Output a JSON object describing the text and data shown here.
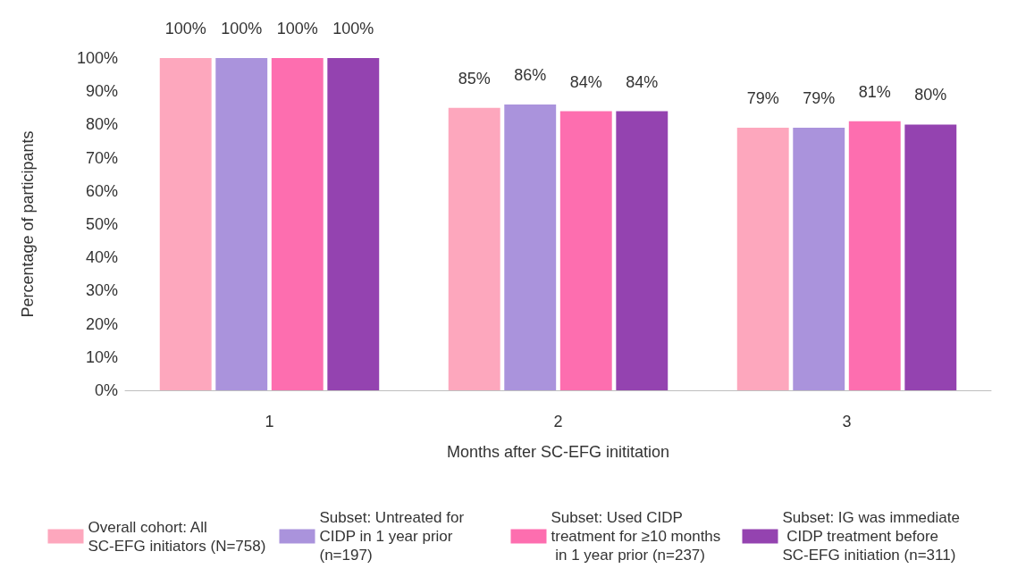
{
  "chart_data": {
    "type": "bar",
    "xlabel": "Months after SC-EFG inititation",
    "ylabel": "Percentage of participants",
    "categories": [
      "1",
      "2",
      "3"
    ],
    "series": [
      {
        "name": "Overall cohort: All SC-EFG initiators (N=758)",
        "color": "#fda7bd",
        "values": [
          100,
          85,
          79
        ],
        "value_labels": [
          "100%",
          "85%",
          "79%"
        ]
      },
      {
        "name": "Subset: Untreated for CIDP in 1 year prior (n=197)",
        "color": "#aa93dc",
        "values": [
          100,
          86,
          79
        ],
        "value_labels": [
          "100%",
          "86%",
          "79%"
        ]
      },
      {
        "name": "Subset: Used CIDP treatment for ≥10 months in 1 year prior (n=237)",
        "color": "#fd6eaf",
        "values": [
          100,
          84,
          81
        ],
        "value_labels": [
          "100%",
          "84%",
          "81%"
        ]
      },
      {
        "name": "Subset: IG was immediate CIDP treatment before SC-EFG initiation (n=311)",
        "color": "#9443b0",
        "values": [
          100,
          84,
          80
        ],
        "value_labels": [
          "100%",
          "84%",
          "80%"
        ]
      }
    ],
    "ylim": [
      0,
      100
    ],
    "yticks": [
      {
        "value": 0,
        "label": "0%"
      },
      {
        "value": 10,
        "label": "10%"
      },
      {
        "value": 20,
        "label": "20%"
      },
      {
        "value": 30,
        "label": "30%"
      },
      {
        "value": 40,
        "label": "40%"
      },
      {
        "value": 50,
        "label": "50%"
      },
      {
        "value": 60,
        "label": "60%"
      },
      {
        "value": 70,
        "label": "70%"
      },
      {
        "value": 80,
        "label": "80%"
      },
      {
        "value": 90,
        "label": "90%"
      },
      {
        "value": 100,
        "label": "100%"
      }
    ],
    "grid": false,
    "legend": "bottom"
  }
}
